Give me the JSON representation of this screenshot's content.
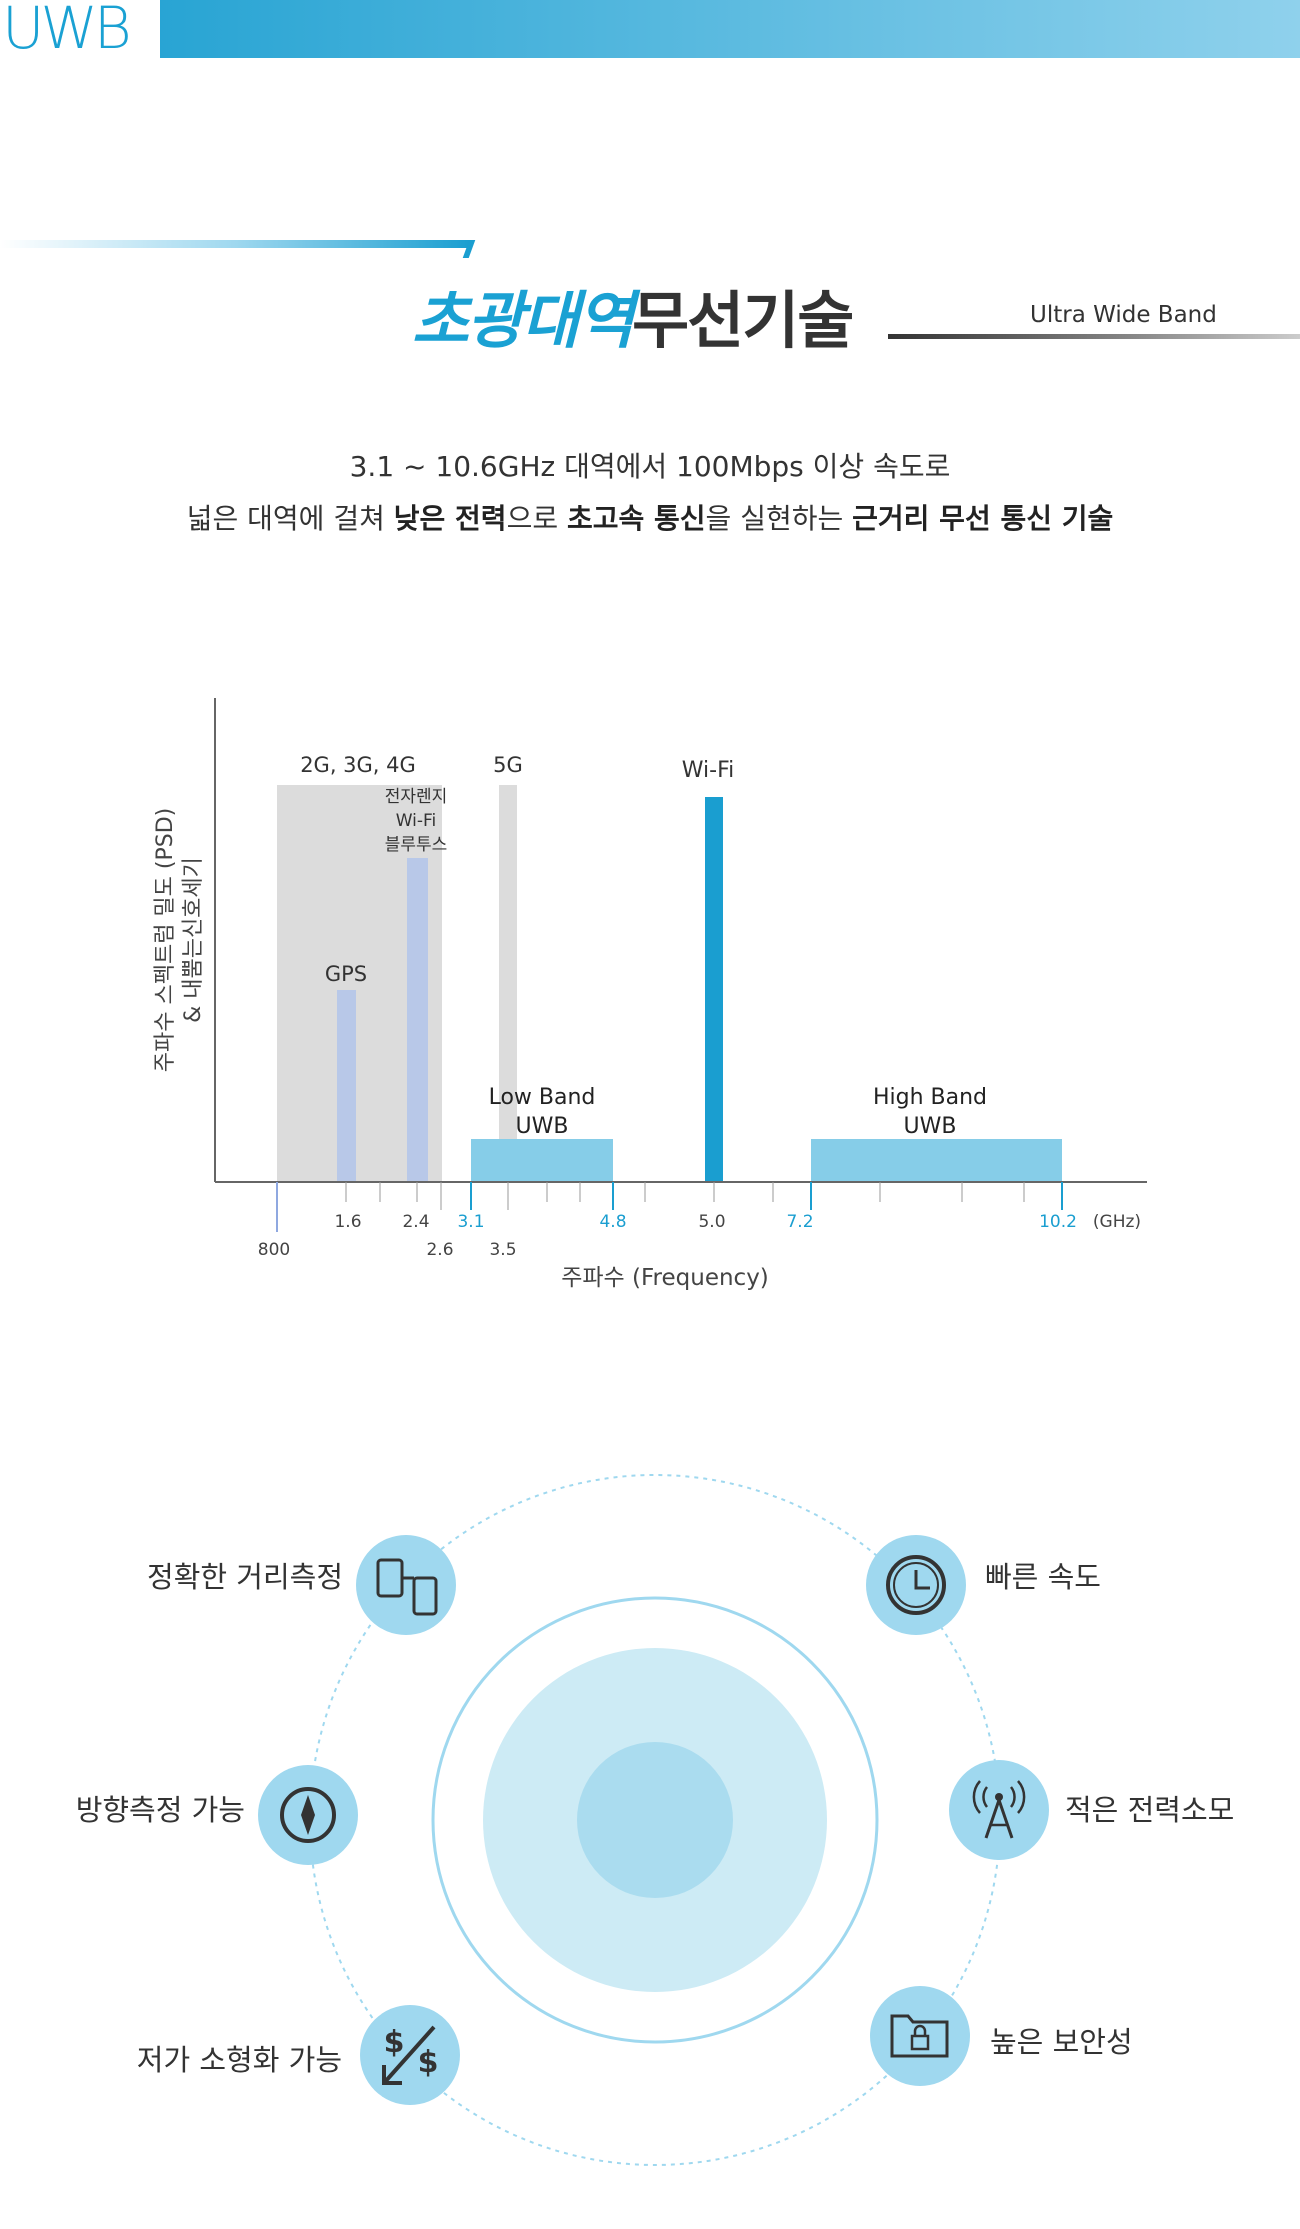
{
  "header": {
    "logo": "UWB",
    "title_accent": "초광대역",
    "title_main": "무선기술",
    "subtitle": "Ultra Wide Band"
  },
  "description": {
    "line1": "3.1 ~ 10.6GHz 대역에서 100Mbps 이상 속도로",
    "line2_parts": [
      "넓은 대역에 걸쳐 ",
      "낮은 전력",
      "으로 ",
      "초고속 통신",
      "을 실현하는 ",
      "근거리 무선 통신 기술"
    ]
  },
  "chart_data": {
    "type": "bar",
    "ylabel_line1": "주파수 스펙트럼 밀도 (PSD)",
    "ylabel_line2": "& 내뿜는신호세기",
    "xlabel": "주파수 (Frequency)",
    "unit": "(GHz)",
    "bands": [
      {
        "label": "2G, 3G, 4G",
        "start": "800",
        "end": "2.6",
        "color": "#dcdcdc"
      },
      {
        "label": "5G",
        "start": "3.5",
        "end": "3.5",
        "color": "#dcdcdc"
      },
      {
        "label": "GPS",
        "start": "1.6",
        "end": "1.6",
        "color": "#b8c8e8"
      },
      {
        "label": "전자렌지 Wi-Fi 블루투스",
        "label_lines": [
          "전자렌지",
          "Wi-Fi",
          "블루투스"
        ],
        "start": "2.4",
        "end": "2.4",
        "color": "#b8c8e8"
      },
      {
        "label": "Wi-Fi",
        "start": "5.0",
        "end": "5.0",
        "color": "#1a9ed0"
      },
      {
        "label": "Low Band UWB",
        "label_lines": [
          "Low Band",
          "UWB"
        ],
        "start": "3.1",
        "end": "4.8",
        "color": "#86cde8"
      },
      {
        "label": "High Band UWB",
        "label_lines": [
          "High Band",
          "UWB"
        ],
        "start": "7.2",
        "end": "10.2",
        "color": "#86cde8"
      }
    ],
    "tick_labels": [
      "800",
      "1.6",
      "2.4",
      "2.6",
      "3.1",
      "3.5",
      "4.8",
      "5.0",
      "7.2",
      "10.2"
    ],
    "accent_ticks": [
      "3.1",
      "4.8",
      "7.2",
      "10.2"
    ],
    "colors": {
      "accent": "#1a9ed0",
      "text": "#333333"
    }
  },
  "features": {
    "left": [
      {
        "label": "정확한 거리측정",
        "icon": "devices-icon"
      },
      {
        "label": "방향측정 가능",
        "icon": "compass-icon"
      },
      {
        "label": "저가 소형화 가능",
        "icon": "dollar-down-icon"
      }
    ],
    "right": [
      {
        "label": "빠른 속도",
        "icon": "clock-icon"
      },
      {
        "label": "적은 전력소모",
        "icon": "antenna-icon"
      },
      {
        "label": "높은 보안성",
        "icon": "lock-folder-icon"
      }
    ]
  }
}
